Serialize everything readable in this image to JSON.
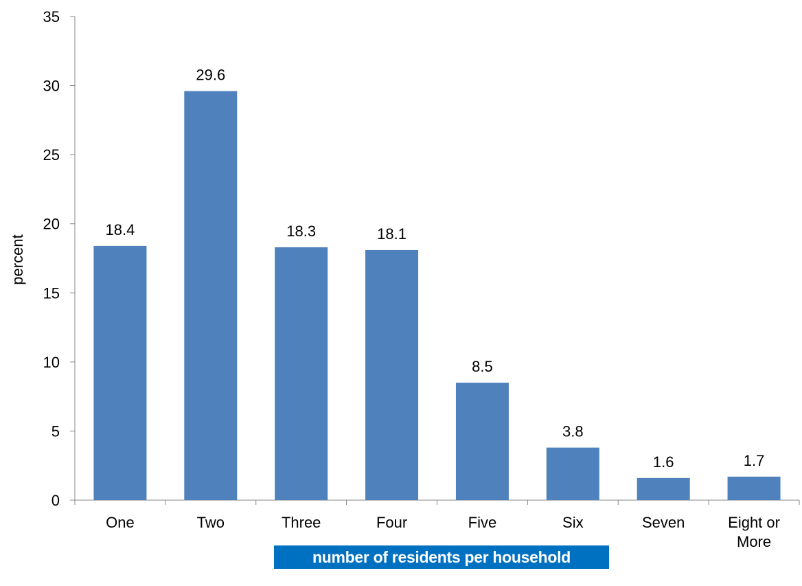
{
  "chart_data": {
    "type": "bar",
    "categories": [
      "One",
      "Two",
      "Three",
      "Four",
      "Five",
      "Six",
      "Seven",
      "Eight or More"
    ],
    "values": [
      18.4,
      29.6,
      18.3,
      18.1,
      8.5,
      3.8,
      1.6,
      1.7
    ],
    "data_labels": [
      "18.4",
      "29.6",
      "18.3",
      "18.1",
      "8.5",
      "3.8",
      "1.6",
      "1.7"
    ],
    "xlabel": "number of residents per household",
    "ylabel": "percent",
    "ylim": [
      0,
      35
    ],
    "yticks": [
      0,
      5,
      10,
      15,
      20,
      25,
      30,
      35
    ],
    "grid": false,
    "legend": "none",
    "bar_color": "#4f81bd",
    "xlabel_background": "#0070c0",
    "xlabel_color": "#ffffff"
  }
}
